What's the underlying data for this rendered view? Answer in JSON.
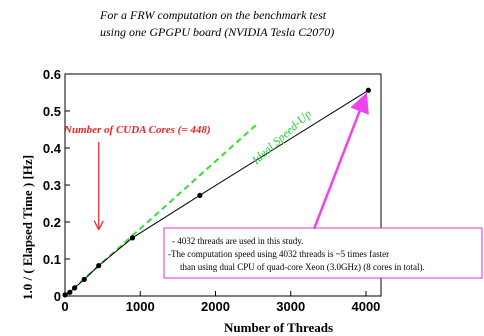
{
  "chart_data": {
    "type": "line",
    "title_lines": [
      "For a FRW computation on the benchmark test",
      "using one GPGPU board (NVIDIA Tesla C2070)"
    ],
    "xlabel": "Number of Threads",
    "ylabel": "1.0 / ( Elapsed Time ) [Hz]",
    "xlim": [
      0,
      4200
    ],
    "ylim": [
      0,
      0.6
    ],
    "x_ticks": [
      0,
      1000,
      2000,
      3000,
      4000
    ],
    "y_ticks": [
      0,
      0.1,
      0.2,
      0.3,
      0.4,
      0.5,
      0.6
    ],
    "grid": false,
    "series": [
      {
        "kind": "measured",
        "color": "#000000",
        "x": [
          1,
          64,
          128,
          256,
          448,
          896,
          1792,
          4032
        ],
        "y": [
          0.003,
          0.01,
          0.022,
          0.045,
          0.082,
          0.157,
          0.272,
          0.556
        ]
      },
      {
        "name": "Ideal Speed-Up",
        "kind": "ideal",
        "color": "#44dd44",
        "x": [
          0,
          1000,
          2000,
          2570
        ],
        "y": [
          0,
          0.182,
          0.364,
          0.468
        ]
      }
    ],
    "annotations": {
      "cores_label": "Number of CUDA Cores (= 448)",
      "cores_x": 448,
      "arrow_color": "#ee3333",
      "note_lines": [
        "- 4032 threads are used in this study.",
        "-The computation speed using 4032 threads is ~5 times faster",
        "than using dual CPU of quad-core Xeon (3.0GHz) (8 cores in total)."
      ],
      "note_border_color": "#dd33dd",
      "highlight_point": {
        "x": 4032,
        "y": 0.556
      }
    }
  }
}
